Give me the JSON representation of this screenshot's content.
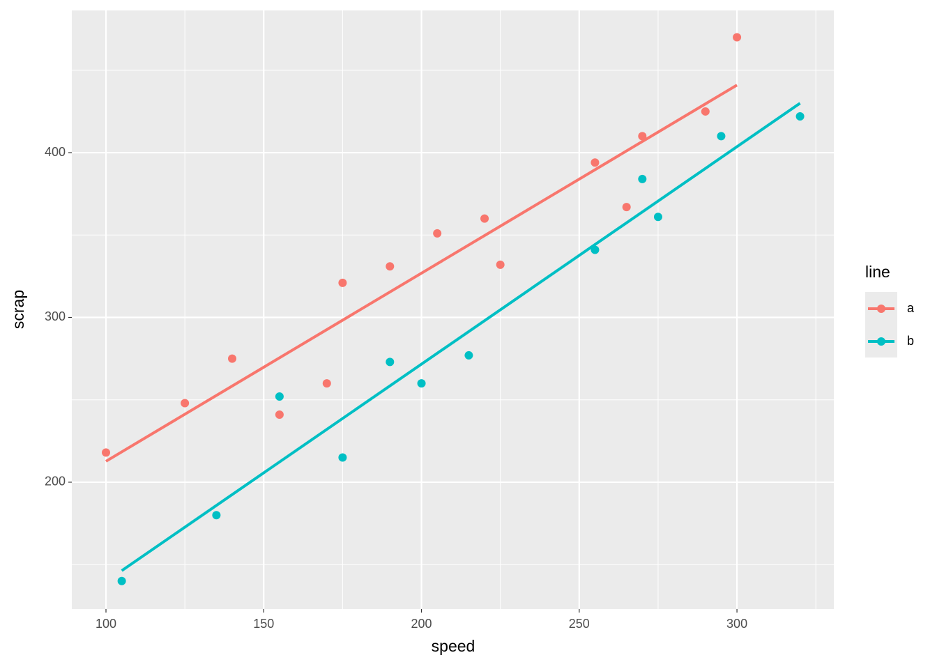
{
  "chart_data": {
    "type": "scatter",
    "x_label": "speed",
    "y_label": "scrap",
    "legend_title": "line",
    "legend_position": "right",
    "xlim": [
      89.17,
      330.7
    ],
    "ylim": [
      123.0,
      486.3
    ],
    "xticks": [
      100,
      150,
      200,
      250,
      300
    ],
    "yticks": [
      200,
      300,
      400
    ],
    "x_minor_grid": [
      125,
      175,
      225,
      275,
      325
    ],
    "y_minor_grid": [
      150,
      250,
      350,
      450
    ],
    "grid": true,
    "series": [
      {
        "name": "a",
        "color": "#F8766D",
        "x": [
          100,
          125,
          140,
          155,
          170,
          175,
          190,
          205,
          220,
          225,
          255,
          265,
          270,
          290,
          300
        ],
        "values": [
          218,
          248,
          275,
          241,
          260,
          321,
          331,
          351,
          360,
          332,
          394,
          367,
          410,
          425,
          470
        ],
        "fit_x": [
          100,
          300
        ],
        "fit_values": [
          212.7,
          441.0
        ]
      },
      {
        "name": "b",
        "color": "#00BFC4",
        "x": [
          105,
          135,
          155,
          175,
          190,
          200,
          215,
          255,
          270,
          275,
          295,
          320
        ],
        "values": [
          140,
          180,
          252,
          215,
          273,
          260,
          277,
          341,
          384,
          361,
          410,
          422
        ],
        "fit_x": [
          105,
          320
        ],
        "fit_values": [
          146.3,
          430.0
        ]
      }
    ]
  }
}
